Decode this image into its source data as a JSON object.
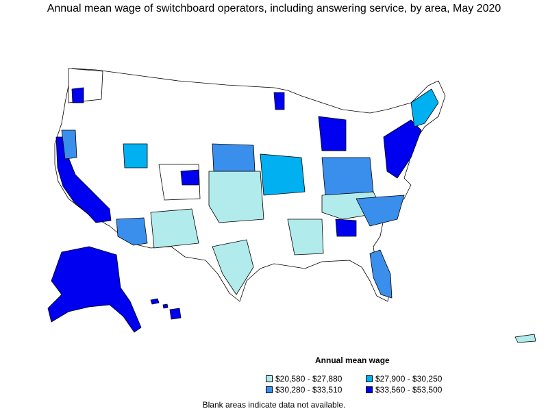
{
  "title": "Annual mean wage of switchboard operators, including answering service, by area, May 2020",
  "legend": {
    "title": "Annual mean wage",
    "items": [
      {
        "label": "$20,580 - $27,880",
        "color": "#b2ebeb"
      },
      {
        "label": "$27,900 - $30,250",
        "color": "#00b0f0"
      },
      {
        "label": "$30,280 - $33,510",
        "color": "#3a8eec"
      },
      {
        "label": "$33,560 - $53,500",
        "color": "#0000f0"
      }
    ]
  },
  "footnote": "Blank areas indicate data not available.",
  "map_colors": {
    "no_data": "#ffffff",
    "border": "#000000"
  }
}
